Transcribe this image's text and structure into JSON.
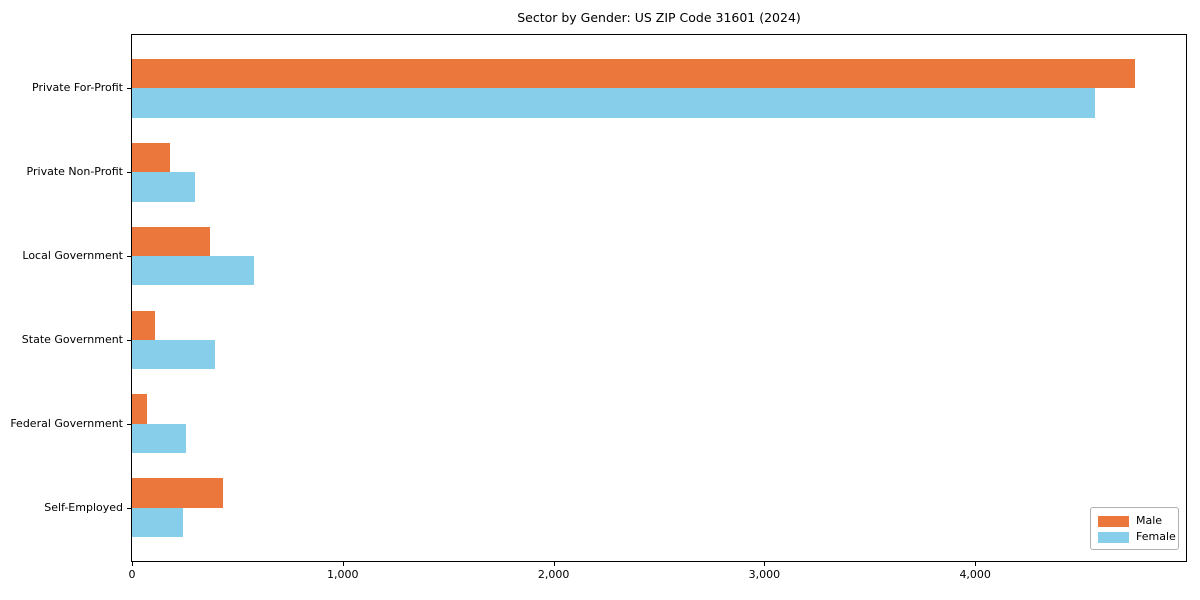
{
  "chart_data": {
    "type": "bar",
    "orientation": "horizontal",
    "title": "Sector by Gender: US ZIP Code 31601 (2024)",
    "categories": [
      "Private For-Profit",
      "Private Non-Profit",
      "Local Government",
      "State Government",
      "Federal Government",
      "Self-Employed"
    ],
    "series": [
      {
        "name": "Male",
        "color": "#EC773C",
        "values": [
          4760,
          180,
          370,
          110,
          70,
          430
        ]
      },
      {
        "name": "Female",
        "color": "#87CEEB",
        "values": [
          4570,
          300,
          580,
          395,
          255,
          240
        ]
      }
    ],
    "xlim": [
      0,
      5000
    ],
    "xticks": [
      0,
      1000,
      2000,
      3000,
      4000
    ],
    "xtick_labels": [
      "0",
      "1,000",
      "2,000",
      "3,000",
      "4,000"
    ],
    "ylabel": "",
    "xlabel": "",
    "grid": false,
    "legend_position": "lower right",
    "axis_color": "#000000",
    "background_color": "#ffffff"
  }
}
